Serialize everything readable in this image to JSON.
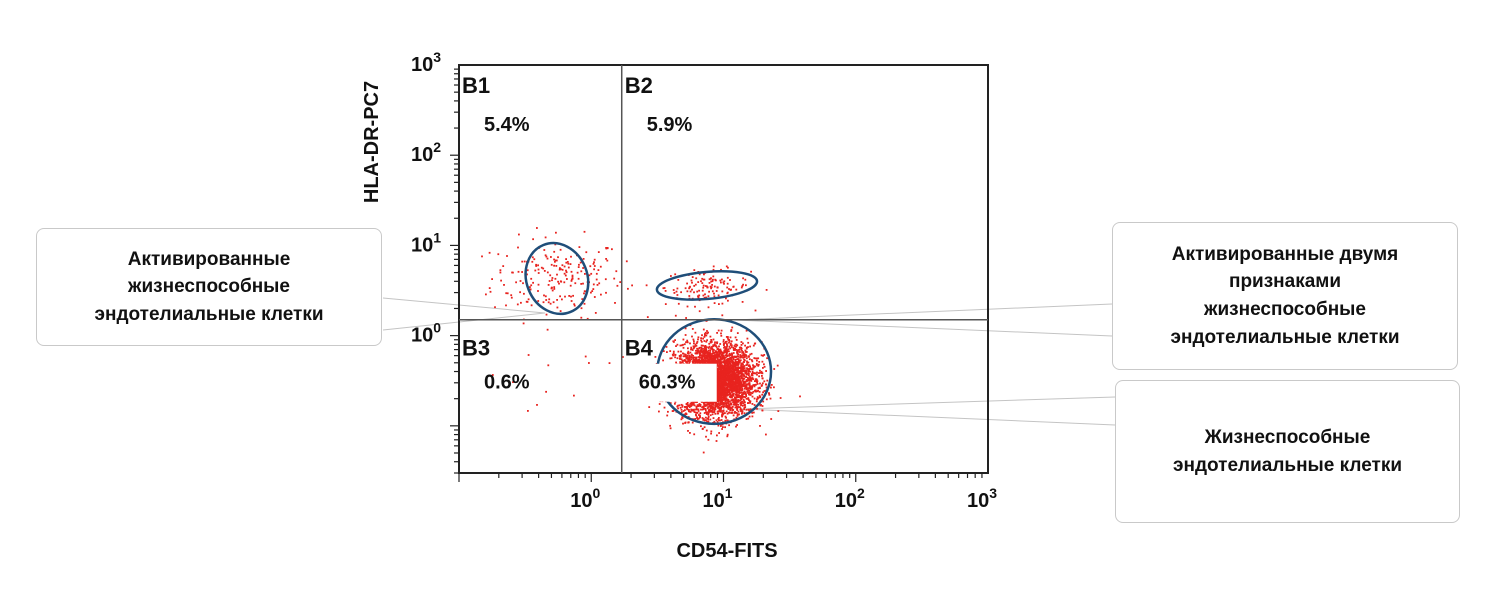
{
  "chart_data": {
    "type": "scatter",
    "xlabel": "CD54-FITS",
    "ylabel": "HLA-DR-PC7",
    "x_scale": "log",
    "y_scale": "log",
    "xlim": [
      0.1,
      1000
    ],
    "ylim": [
      0.03,
      1000
    ],
    "x_ticks": [
      {
        "value": 1,
        "label": "10",
        "exp": "0"
      },
      {
        "value": 10,
        "label": "10",
        "exp": "1"
      },
      {
        "value": 100,
        "label": "10",
        "exp": "2"
      },
      {
        "value": 1000,
        "label": "10",
        "exp": "3"
      }
    ],
    "y_ticks": [
      {
        "value": 1,
        "label": "10",
        "exp": "0"
      },
      {
        "value": 10,
        "label": "10",
        "exp": "1"
      },
      {
        "value": 100,
        "label": "10",
        "exp": "2"
      },
      {
        "value": 1000,
        "label": "10",
        "exp": "3"
      }
    ],
    "gate_x": 1.7,
    "gate_y": 1.5,
    "point_color": "#e8231f",
    "quadrants": [
      {
        "label": "B1",
        "percent": "5.4%"
      },
      {
        "label": "B2",
        "percent": "5.9%"
      },
      {
        "label": "B3",
        "percent": "0.6%"
      },
      {
        "label": "B4",
        "percent": "60.3%"
      }
    ],
    "populations": [
      {
        "name": "b1-cluster",
        "center": [
          0.55,
          4.5
        ],
        "spread": [
          0.25,
          0.22
        ],
        "count": 220
      },
      {
        "name": "b2-cluster",
        "center": [
          7.5,
          3.5
        ],
        "spread": [
          0.16,
          0.1
        ],
        "count": 140
      },
      {
        "name": "b4-cluster",
        "center": [
          8.5,
          0.33
        ],
        "spread": [
          0.15,
          0.2
        ],
        "count": 4200
      },
      {
        "name": "b3-sparse",
        "center": [
          0.7,
          0.35
        ],
        "spread": [
          0.25,
          0.2
        ],
        "count": 12
      }
    ],
    "gates": [
      {
        "name": "activated-gate",
        "center": [
          0.55,
          4.3
        ],
        "axes": [
          0.23,
          0.4
        ],
        "rotation": -22
      },
      {
        "name": "double-activated-gate",
        "center": [
          7.5,
          3.6
        ],
        "axes": [
          0.38,
          0.15
        ],
        "rotation": -5
      },
      {
        "name": "viable-gate",
        "center": [
          8.5,
          0.4
        ],
        "axes": [
          0.43,
          0.58
        ],
        "rotation": 0
      }
    ]
  },
  "callouts": {
    "left": "Активированные\nжизнеспособные\nэндотелиальные клетки",
    "right_top": "Активированные двумя\nпризнаками\nжизнеспособные\nэндотелиальные клетки",
    "right_bottom": "Жизнеспособные\nэндотелиальные клетки"
  }
}
